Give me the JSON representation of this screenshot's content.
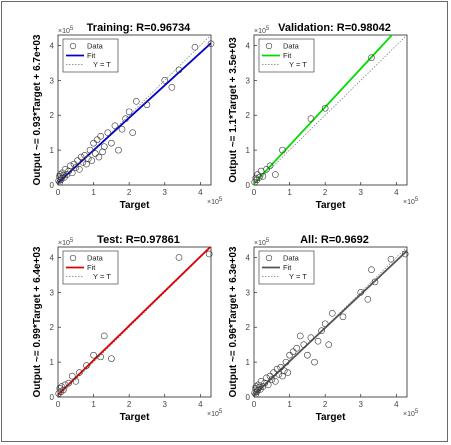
{
  "panels": [
    {
      "title": "Training: R=0.96734",
      "ylabel": "Output ~= 0.93*Target + 6.7e+03",
      "xlabel": "Target",
      "fit_color": "#0000cc"
    },
    {
      "title": "Validation: R=0.98042",
      "ylabel": "Output ~= 1.1*Target + 3.5e+03",
      "xlabel": "Target",
      "fit_color": "#00dd00"
    },
    {
      "title": "Test: R=0.97861",
      "ylabel": "Output ~= 0.99*Target + 6.4e+03",
      "xlabel": "Target",
      "fit_color": "#dd0000"
    },
    {
      "title": "All: R=0.9692",
      "ylabel": "Output ~= 0.96*Target + 6.3e+03",
      "xlabel": "Target",
      "fit_color": "#555555"
    }
  ],
  "axis": {
    "ticks": [
      "0",
      "1",
      "2",
      "3",
      "4"
    ],
    "multiplier_base": "×10",
    "multiplier_exp": "5"
  },
  "legend": {
    "data_label": "Data",
    "fit_label": "Fit",
    "yt_label": "Y = T"
  },
  "chart_data": [
    {
      "type": "scatter",
      "title": "Training: R=0.96734",
      "xlabel": "Target",
      "ylabel": "Output ~= 0.93*Target + 6.7e+03",
      "xlim": [
        0,
        430000
      ],
      "ylim": [
        0,
        430000
      ],
      "fit": {
        "slope": 0.93,
        "intercept": 6700
      },
      "identity_line": true,
      "legend_position": "top-left",
      "x": [
        2000,
        4000,
        5000,
        6000,
        8000,
        10000,
        12000,
        15000,
        18000,
        20000,
        25000,
        30000,
        35000,
        40000,
        45000,
        50000,
        55000,
        60000,
        65000,
        70000,
        75000,
        80000,
        85000,
        90000,
        95000,
        100000,
        105000,
        110000,
        115000,
        120000,
        125000,
        130000,
        140000,
        150000,
        160000,
        170000,
        180000,
        190000,
        200000,
        210000,
        220000,
        250000,
        300000,
        320000,
        340000,
        385000,
        430000
      ],
      "y": [
        12000,
        25000,
        8000,
        30000,
        15000,
        20000,
        35000,
        28000,
        22000,
        45000,
        30000,
        40000,
        55000,
        35000,
        60000,
        50000,
        70000,
        45000,
        80000,
        65000,
        85000,
        60000,
        75000,
        100000,
        70000,
        120000,
        90000,
        130000,
        80000,
        140000,
        95000,
        110000,
        150000,
        120000,
        170000,
        100000,
        160000,
        190000,
        210000,
        150000,
        240000,
        230000,
        300000,
        280000,
        330000,
        395000,
        405000
      ]
    },
    {
      "type": "scatter",
      "title": "Validation: R=0.98042",
      "xlabel": "Target",
      "ylabel": "Output ~= 1.1*Target + 3.5e+03",
      "xlim": [
        0,
        430000
      ],
      "ylim": [
        0,
        430000
      ],
      "fit": {
        "slope": 1.1,
        "intercept": 3500
      },
      "identity_line": true,
      "legend_position": "top-left",
      "x": [
        2000,
        5000,
        8000,
        10000,
        15000,
        20000,
        25000,
        35000,
        45000,
        60000,
        80000,
        160000,
        200000,
        330000
      ],
      "y": [
        8000,
        20000,
        15000,
        30000,
        22000,
        40000,
        25000,
        45000,
        55000,
        30000,
        100000,
        190000,
        220000,
        365000
      ]
    },
    {
      "type": "scatter",
      "title": "Test: R=0.97861",
      "xlabel": "Target",
      "ylabel": "Output ~= 0.99*Target + 6.4e+03",
      "xlim": [
        0,
        430000
      ],
      "ylim": [
        0,
        430000
      ],
      "fit": {
        "slope": 0.99,
        "intercept": 6400
      },
      "identity_line": true,
      "legend_position": "top-left",
      "x": [
        2000,
        5000,
        8000,
        10000,
        15000,
        20000,
        30000,
        40000,
        50000,
        60000,
        80000,
        100000,
        120000,
        130000,
        150000,
        340000,
        425000
      ],
      "y": [
        10000,
        25000,
        15000,
        30000,
        20000,
        35000,
        40000,
        60000,
        45000,
        70000,
        90000,
        120000,
        115000,
        175000,
        110000,
        400000,
        410000
      ]
    },
    {
      "type": "scatter",
      "title": "All: R=0.9692",
      "xlabel": "Target",
      "ylabel": "Output ~= 0.96*Target + 6.3e+03",
      "xlim": [
        0,
        430000
      ],
      "ylim": [
        0,
        430000
      ],
      "fit": {
        "slope": 0.96,
        "intercept": 6300
      },
      "identity_line": true,
      "legend_position": "top-left",
      "x": [
        2000,
        4000,
        5000,
        6000,
        8000,
        10000,
        12000,
        15000,
        18000,
        20000,
        25000,
        30000,
        35000,
        40000,
        45000,
        50000,
        55000,
        60000,
        65000,
        70000,
        75000,
        80000,
        85000,
        90000,
        95000,
        100000,
        110000,
        120000,
        130000,
        140000,
        150000,
        160000,
        170000,
        180000,
        190000,
        200000,
        210000,
        220000,
        250000,
        300000,
        320000,
        330000,
        340000,
        385000,
        425000
      ],
      "y": [
        12000,
        25000,
        8000,
        30000,
        15000,
        20000,
        35000,
        28000,
        22000,
        45000,
        30000,
        40000,
        55000,
        35000,
        60000,
        50000,
        70000,
        45000,
        80000,
        65000,
        85000,
        60000,
        75000,
        100000,
        70000,
        120000,
        130000,
        140000,
        175000,
        150000,
        120000,
        170000,
        100000,
        160000,
        190000,
        210000,
        150000,
        240000,
        230000,
        300000,
        280000,
        365000,
        330000,
        395000,
        410000
      ]
    }
  ]
}
